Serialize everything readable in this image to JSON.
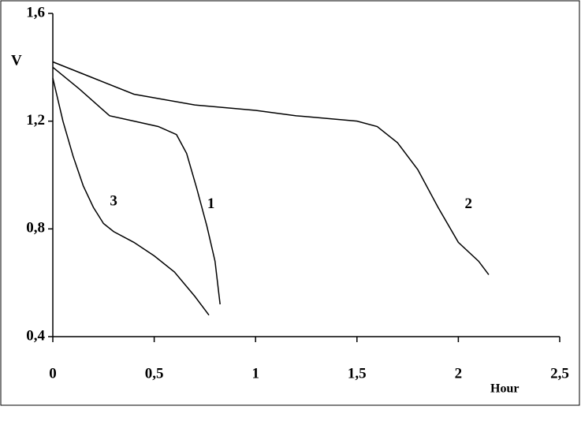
{
  "chart_data": {
    "type": "line",
    "ylabel": "V",
    "xlabel": "Hour",
    "xlim": [
      0,
      2.5
    ],
    "ylim": [
      0.4,
      1.6
    ],
    "xticks": [
      0,
      {
        "value": 0.5,
        "label": "0,5"
      },
      1,
      {
        "value": 1.5,
        "label": "1,5"
      },
      2,
      {
        "value": 2.5,
        "label": "2,5"
      }
    ],
    "yticks": [
      {
        "value": 0.4,
        "label": "0,4"
      },
      {
        "value": 0.8,
        "label": "0,8"
      },
      {
        "value": 1.2,
        "label": "1,2"
      },
      {
        "value": 1.6,
        "label": "1,6"
      }
    ],
    "grid": false,
    "series": [
      {
        "name": "1",
        "color": "#000000",
        "x": [
          0,
          0.13,
          0.28,
          0.4,
          0.52,
          0.61,
          0.66,
          0.71,
          0.76,
          0.8,
          0.825
        ],
        "values": [
          1.4,
          1.32,
          1.22,
          1.2,
          1.18,
          1.15,
          1.08,
          0.95,
          0.81,
          0.68,
          0.52
        ]
      },
      {
        "name": "2",
        "color": "#000000",
        "x": [
          0,
          0.2,
          0.4,
          0.7,
          1.0,
          1.2,
          1.5,
          1.6,
          1.7,
          1.8,
          1.9,
          2.0,
          2.1,
          2.15
        ],
        "values": [
          1.42,
          1.36,
          1.3,
          1.26,
          1.24,
          1.22,
          1.2,
          1.18,
          1.12,
          1.02,
          0.88,
          0.75,
          0.68,
          0.63
        ]
      },
      {
        "name": "3",
        "color": "#000000",
        "x": [
          0,
          0.05,
          0.1,
          0.15,
          0.2,
          0.25,
          0.3,
          0.4,
          0.5,
          0.6,
          0.7,
          0.77
        ],
        "values": [
          1.36,
          1.2,
          1.07,
          0.96,
          0.88,
          0.82,
          0.79,
          0.75,
          0.7,
          0.64,
          0.55,
          0.48
        ]
      }
    ],
    "annotations": [
      {
        "text": "1",
        "x": 0.78,
        "y": 0.89
      },
      {
        "text": "2",
        "x": 2.05,
        "y": 0.89
      },
      {
        "text": "3",
        "x": 0.3,
        "y": 0.9
      }
    ]
  }
}
